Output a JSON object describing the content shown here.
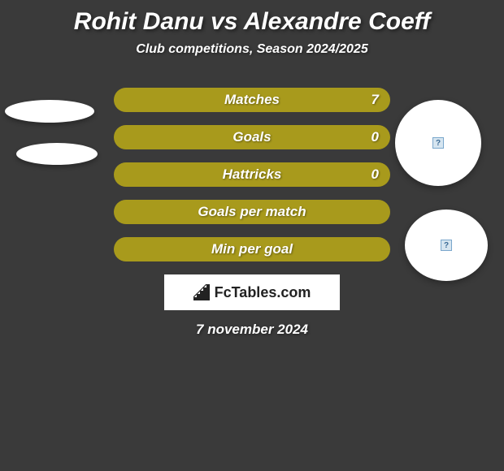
{
  "title": "Rohit Danu vs Alexandre Coeff",
  "subtitle": "Club competitions, Season 2024/2025",
  "bar_color": "#a89a1c",
  "bar_text_color": "#ffffff",
  "background_color": "#3a3a3a",
  "stats": [
    {
      "label": "Matches",
      "value": "7"
    },
    {
      "label": "Goals",
      "value": "0"
    },
    {
      "label": "Hattricks",
      "value": "0"
    },
    {
      "label": "Goals per match",
      "value": ""
    },
    {
      "label": "Min per goal",
      "value": ""
    }
  ],
  "logo_text": "FcTables.com",
  "date": "7 november 2024"
}
